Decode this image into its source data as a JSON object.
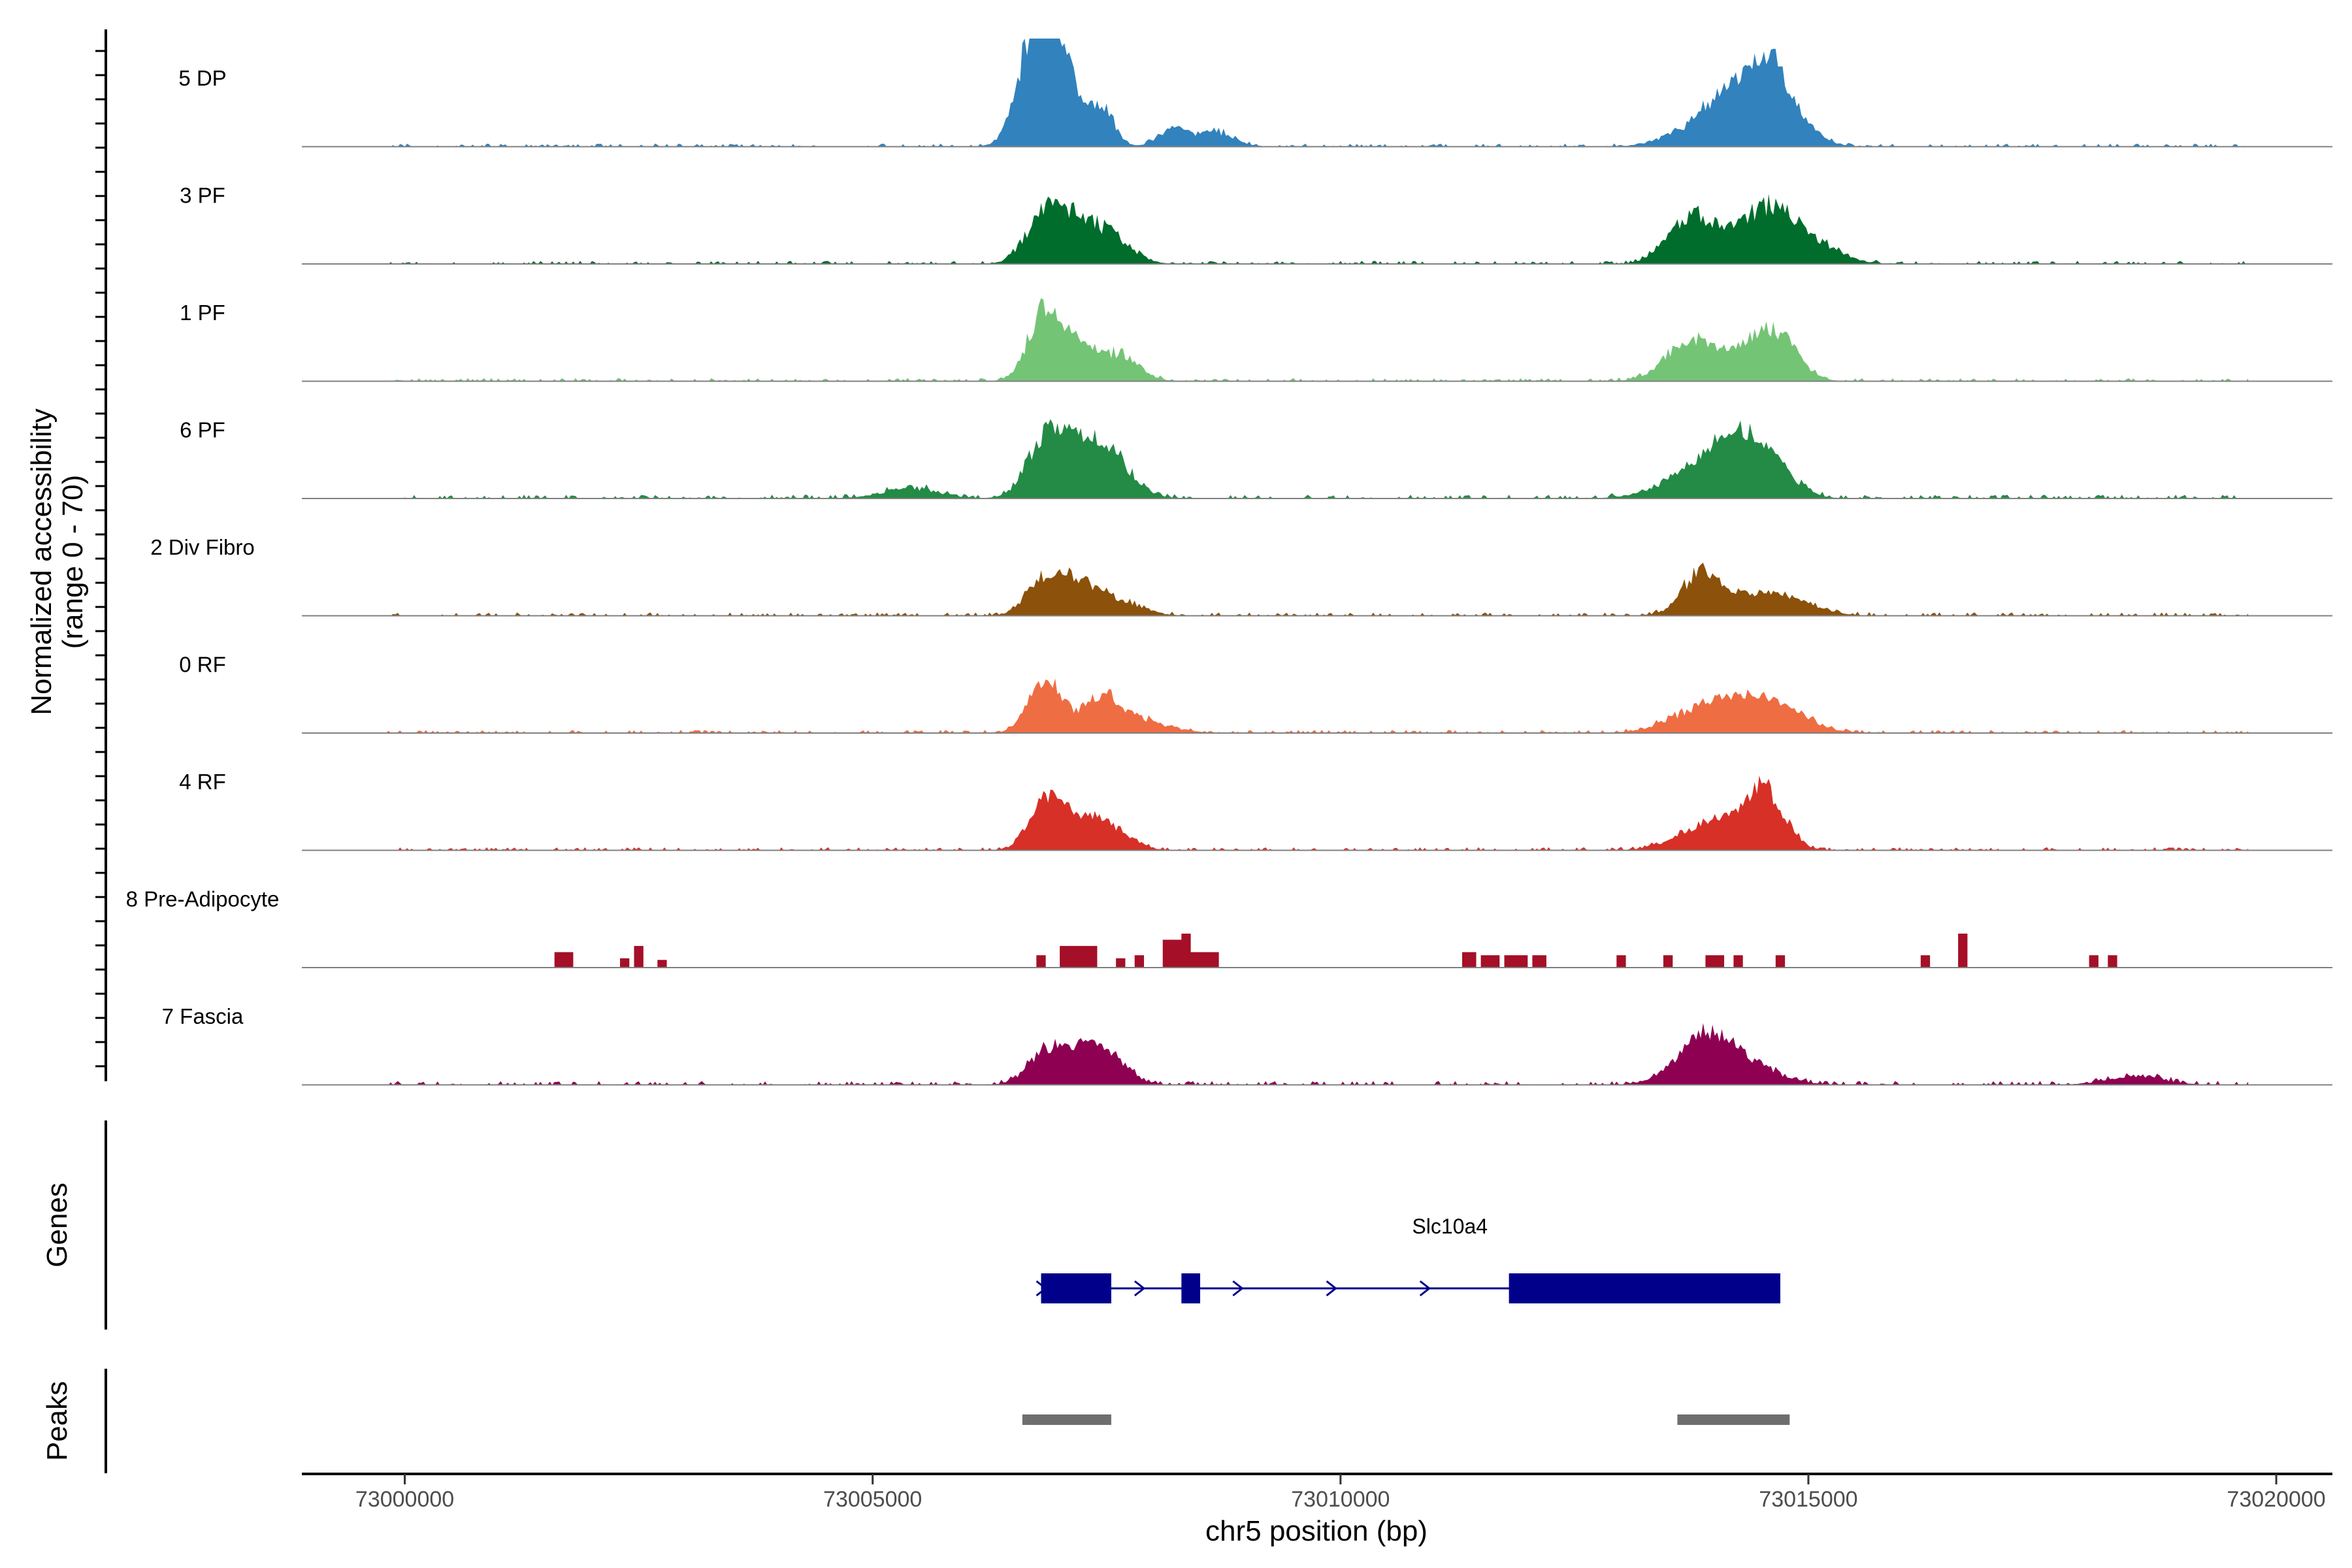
{
  "chart_data": {
    "type": "area",
    "title": "",
    "ylabel_line1": "Normalized accessibility",
    "ylabel_line2": "(range 0 - 70)",
    "y_range": [
      0,
      70
    ],
    "xlabel": "chr5 position (bp)",
    "xlim": [
      72998900,
      73020600
    ],
    "xticks": [
      73000000,
      73005000,
      73010000,
      73015000,
      73020000
    ],
    "xtick_labels": [
      "73000000",
      "73005000",
      "73010000",
      "73015000",
      "73020000"
    ],
    "series": [
      {
        "name": "5 DP",
        "color": "#3182bd",
        "background": [
          0.4,
          2.0
        ],
        "peaks": [
          [
            73006850,
            70,
            220
          ],
          [
            73006700,
            28,
            150
          ],
          [
            73007100,
            24,
            110
          ],
          [
            73007450,
            26,
            130
          ],
          [
            73008200,
            12,
            150
          ],
          [
            73008650,
            10,
            200
          ],
          [
            73013950,
            18,
            350
          ],
          [
            73014300,
            28,
            250
          ],
          [
            73014580,
            30,
            200
          ],
          [
            73014800,
            16,
            260
          ]
        ]
      },
      {
        "name": "3 PF",
        "color": "#006d2c",
        "background": [
          0.4,
          2.0
        ],
        "peaks": [
          [
            73006850,
            34,
            200
          ],
          [
            73007200,
            22,
            180
          ],
          [
            73007550,
            18,
            220
          ],
          [
            73013700,
            26,
            220
          ],
          [
            73014200,
            18,
            350
          ],
          [
            73014650,
            30,
            250
          ],
          [
            73015150,
            10,
            250
          ]
        ]
      },
      {
        "name": "1 PF",
        "color": "#74c476",
        "background": [
          0.4,
          2.0
        ],
        "peaks": [
          [
            73006850,
            46,
            180
          ],
          [
            73007200,
            20,
            200
          ],
          [
            73007650,
            16,
            200
          ],
          [
            73013700,
            20,
            260
          ],
          [
            73014200,
            16,
            350
          ],
          [
            73014650,
            28,
            220
          ]
        ]
      },
      {
        "name": "6 PF",
        "color": "#238b45",
        "background": [
          0.4,
          2.5
        ],
        "peaks": [
          [
            73006850,
            40,
            200
          ],
          [
            73007200,
            26,
            180
          ],
          [
            73007550,
            28,
            230
          ],
          [
            73005400,
            7,
            300
          ],
          [
            73013900,
            20,
            400
          ],
          [
            73014250,
            24,
            300
          ],
          [
            73014600,
            14,
            260
          ]
        ]
      },
      {
        "name": "2 Div Fibro",
        "color": "#8c510a",
        "background": [
          0.4,
          2.2
        ],
        "peaks": [
          [
            73006850,
            22,
            200
          ],
          [
            73007200,
            18,
            200
          ],
          [
            73007600,
            10,
            260
          ],
          [
            73013850,
            24,
            180
          ],
          [
            73014250,
            12,
            400
          ],
          [
            73014800,
            8,
            300
          ]
        ]
      },
      {
        "name": "0 RF",
        "color": "#ef6d43",
        "background": [
          0.4,
          2.0
        ],
        "peaks": [
          [
            73006850,
            34,
            180
          ],
          [
            73007450,
            22,
            200
          ],
          [
            73007850,
            8,
            300
          ],
          [
            73013850,
            14,
            350
          ],
          [
            73014300,
            16,
            320
          ],
          [
            73014750,
            12,
            300
          ]
        ]
      },
      {
        "name": "4 RF",
        "color": "#d73027",
        "background": [
          0.4,
          2.0
        ],
        "peaks": [
          [
            73006850,
            32,
            180
          ],
          [
            73007200,
            16,
            200
          ],
          [
            73007550,
            14,
            220
          ],
          [
            73013850,
            14,
            300
          ],
          [
            73014550,
            38,
            200
          ],
          [
            73014200,
            10,
            250
          ]
        ]
      },
      {
        "name": "8 Pre-Adipocyte",
        "color": "#a50f27",
        "background": [
          0,
          0
        ],
        "bars": [
          [
            73001600,
            73001800,
            10
          ],
          [
            73002300,
            73002400,
            6
          ],
          [
            73002450,
            73002550,
            14
          ],
          [
            73002700,
            73002800,
            5
          ],
          [
            73006750,
            73006850,
            8
          ],
          [
            73007000,
            73007400,
            14
          ],
          [
            73007600,
            73007700,
            6
          ],
          [
            73007800,
            73007900,
            8
          ],
          [
            73008100,
            73008300,
            18
          ],
          [
            73008300,
            73008400,
            22
          ],
          [
            73008400,
            73008700,
            10
          ],
          [
            73011300,
            73011450,
            10
          ],
          [
            73011500,
            73011700,
            8
          ],
          [
            73011750,
            73012000,
            8
          ],
          [
            73012050,
            73012200,
            8
          ],
          [
            73012950,
            73013050,
            8
          ],
          [
            73013450,
            73013550,
            8
          ],
          [
            73013900,
            73014100,
            8
          ],
          [
            73014200,
            73014300,
            8
          ],
          [
            73014650,
            73014750,
            8
          ],
          [
            73016200,
            73016300,
            8
          ],
          [
            73016600,
            73016700,
            22
          ],
          [
            73018000,
            73018100,
            8
          ],
          [
            73018200,
            73018300,
            8
          ]
        ]
      },
      {
        "name": "7 Fascia",
        "color": "#8e0152",
        "background": [
          0.4,
          2.5
        ],
        "peaks": [
          [
            73006850,
            20,
            200
          ],
          [
            73007200,
            16,
            200
          ],
          [
            73007500,
            18,
            220
          ],
          [
            73013650,
            10,
            250
          ],
          [
            73013950,
            22,
            250
          ],
          [
            73014300,
            14,
            350
          ],
          [
            73018500,
            6,
            300
          ]
        ]
      }
    ],
    "genes": [
      {
        "name": "Slc10a4",
        "start": 73006800,
        "end": 73014700,
        "strand": "+",
        "exons": [
          [
            73006800,
            73007550
          ],
          [
            73008300,
            73008500
          ],
          [
            73011800,
            73014700
          ]
        ]
      }
    ],
    "peak_regions": [
      [
        73006600,
        73007550
      ],
      [
        73013600,
        73014800
      ]
    ],
    "panel_labels": {
      "genes": "Genes",
      "peaks": "Peaks"
    }
  }
}
